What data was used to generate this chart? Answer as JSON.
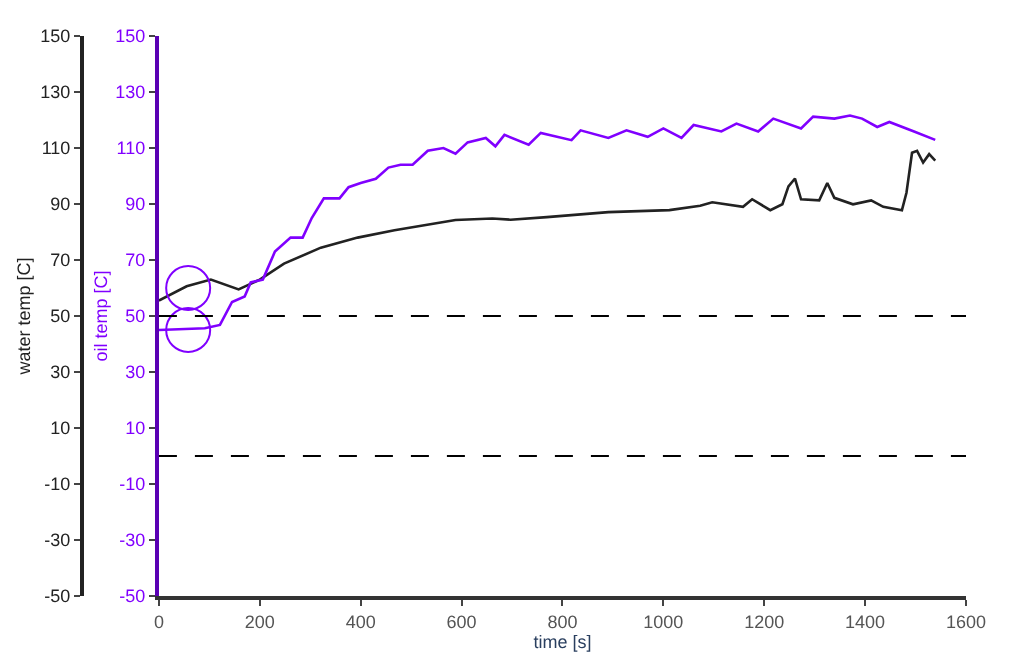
{
  "chart_data": {
    "type": "line",
    "xlabel": "time [s]",
    "ylabel": "water temp [C]",
    "y2label": "oil temp [C]",
    "xlim": [
      0,
      1600
    ],
    "xticks": [
      0,
      200,
      400,
      600,
      800,
      1000,
      1200,
      1400,
      1600
    ],
    "ylim": [
      -50,
      150
    ],
    "yticks": [
      -50,
      -30,
      -10,
      10,
      30,
      50,
      70,
      90,
      110,
      130,
      150
    ],
    "y2lim": [
      -50,
      150
    ],
    "y2ticks": [
      -50,
      -30,
      -10,
      10,
      30,
      50,
      70,
      90,
      110,
      130,
      150
    ],
    "series": [
      {
        "color": "#222222",
        "x": [
          0,
          55,
          103,
          158,
          200,
          248,
          321,
          394,
          467,
          588,
          661,
          697,
          769,
          891,
          1012,
          1073,
          1097,
          1158,
          1176,
          1212,
          1236,
          1248,
          1261,
          1273,
          1309,
          1325,
          1339,
          1376,
          1412,
          1436,
          1473,
          1482,
          1493,
          1503,
          1515,
          1527,
          1539
        ],
        "values": [
          55.5,
          60.6,
          63,
          59.5,
          63,
          68.7,
          74.4,
          78,
          80.6,
          84.3,
          84.8,
          84.4,
          85.3,
          87.1,
          87.8,
          89.4,
          90.6,
          89,
          91.7,
          87.8,
          89.9,
          96.3,
          99.1,
          91.7,
          91.3,
          97.5,
          92.2,
          89.9,
          91.3,
          89,
          87.8,
          94,
          108.3,
          109,
          104.8,
          107.8,
          105.5
        ]
      },
      {
        "color": "#8000ff",
        "axis": "y2",
        "x": [
          0,
          91,
          121,
          145,
          170,
          182,
          206,
          230,
          261,
          285,
          303,
          327,
          358,
          376,
          400,
          430,
          455,
          479,
          503,
          533,
          564,
          588,
          612,
          648,
          667,
          685,
          733,
          757,
          818,
          836,
          891,
          927,
          969,
          1000,
          1036,
          1060,
          1115,
          1145,
          1188,
          1218,
          1273,
          1297,
          1339,
          1370,
          1394,
          1424,
          1448,
          1497,
          1539
        ],
        "values": [
          45,
          45.6,
          46.8,
          55,
          57,
          62,
          63,
          73,
          78,
          78,
          85,
          92,
          92,
          96,
          97.5,
          99,
          103,
          104,
          104,
          109,
          110,
          108,
          112,
          113.6,
          110.6,
          114.7,
          111.2,
          115.4,
          112.8,
          116.3,
          113.6,
          116.3,
          114,
          117,
          113.6,
          118.2,
          115.9,
          118.7,
          115.9,
          120.5,
          117,
          121.2,
          120.5,
          121.6,
          120.5,
          117.5,
          119.3,
          115.9,
          112.9
        ]
      },
      {
        "type": "scatter",
        "marker": "circle",
        "color": "#8000ff",
        "x": [
          58
        ],
        "values": [
          60
        ]
      },
      {
        "type": "scatter",
        "marker": "circle",
        "color": "#8000ff",
        "axis": "y2",
        "x": [
          58
        ],
        "values": [
          45
        ]
      }
    ],
    "ref_lines": [
      {
        "axis": "y",
        "value": 50,
        "color": "#000000",
        "line_style": "dashed"
      },
      {
        "axis": "y",
        "value": 0,
        "color": "#000000",
        "line_style": "dashed"
      }
    ]
  }
}
